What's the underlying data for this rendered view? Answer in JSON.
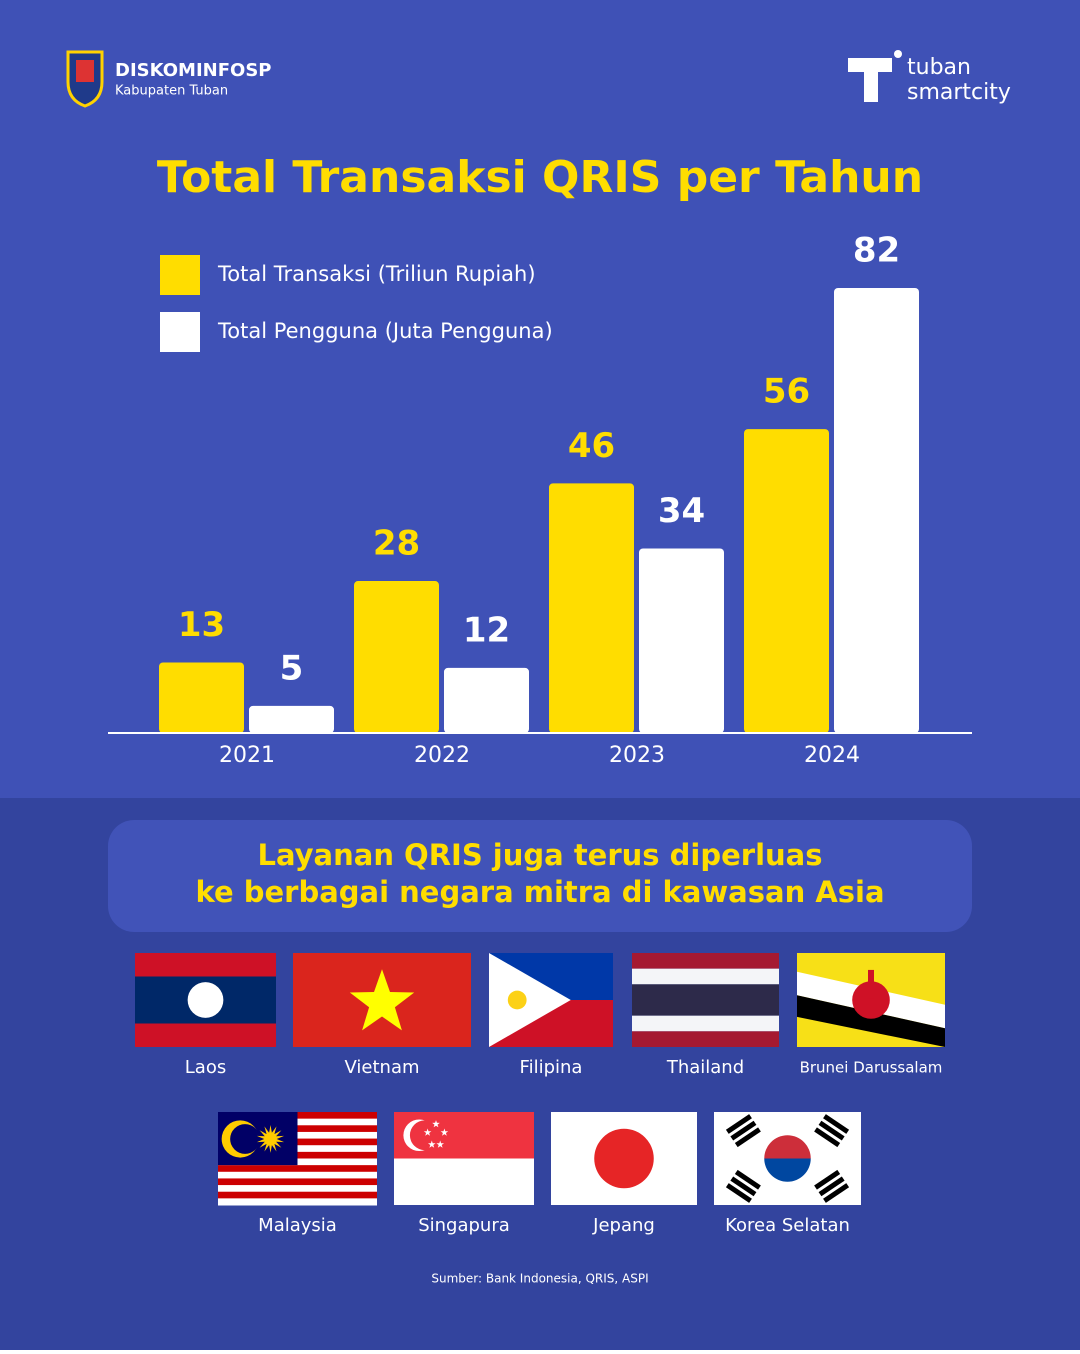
{
  "header": {
    "org_name": "DISKOMINFOSP",
    "org_sub": "Kabupaten Tuban",
    "brand_top": "tuban",
    "brand_bottom": "smartcity"
  },
  "chart_data": {
    "type": "bar",
    "title": "Total Transaksi QRIS per Tahun",
    "categories": [
      "2021",
      "2022",
      "2023",
      "2024"
    ],
    "series": [
      {
        "name": "Total Transaksi (Triliun Rupiah)",
        "color": "#ffdd00",
        "values": [
          13,
          28,
          46,
          56
        ]
      },
      {
        "name": "Total Pengguna (Juta Pengguna)",
        "color": "#ffffff",
        "values": [
          5,
          12,
          34,
          82
        ]
      }
    ]
  },
  "banner": {
    "lines": [
      "Layanan QRIS juga terus diperluas",
      "ke berbagai negara mitra di kawasan Asia"
    ]
  },
  "flags": [
    "Laos",
    "Vietnam",
    "Filipina",
    "Thailand",
    "Brunei Darussalam",
    "Malaysia",
    "Singapura",
    "Jepang",
    "Korea Selatan"
  ],
  "source": "Sumber: Bank Indonesia, QRIS, ASPI"
}
